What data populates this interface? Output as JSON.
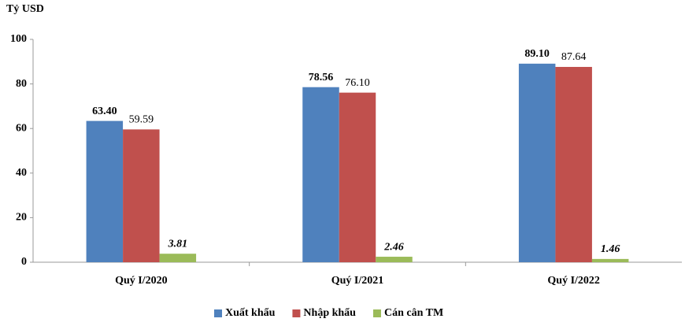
{
  "chart_data": {
    "type": "bar",
    "y_label": "Tỷ USD",
    "categories": [
      "Quý I/2020",
      "Quý I/2021",
      "Quý I/2022"
    ],
    "series": [
      {
        "name": "Xuất khẩu",
        "color": "#4f81bd",
        "values": [
          63.4,
          78.56,
          89.1
        ],
        "value_labels": [
          "63.40",
          "78.56",
          "89.10"
        ]
      },
      {
        "name": "Nhập khẩu",
        "color": "#c0504d",
        "values": [
          59.59,
          76.1,
          87.64
        ],
        "value_labels": [
          "59.59",
          "76.10",
          "87.64"
        ]
      },
      {
        "name": "Cán cân TM",
        "color": "#9bbb59",
        "values": [
          3.81,
          2.46,
          1.46
        ],
        "value_labels": [
          "3.81",
          "2.46",
          "1.46"
        ]
      }
    ],
    "ylim": [
      0,
      100
    ],
    "yticks": [
      0,
      20,
      40,
      60,
      80,
      100
    ],
    "grid": false
  }
}
